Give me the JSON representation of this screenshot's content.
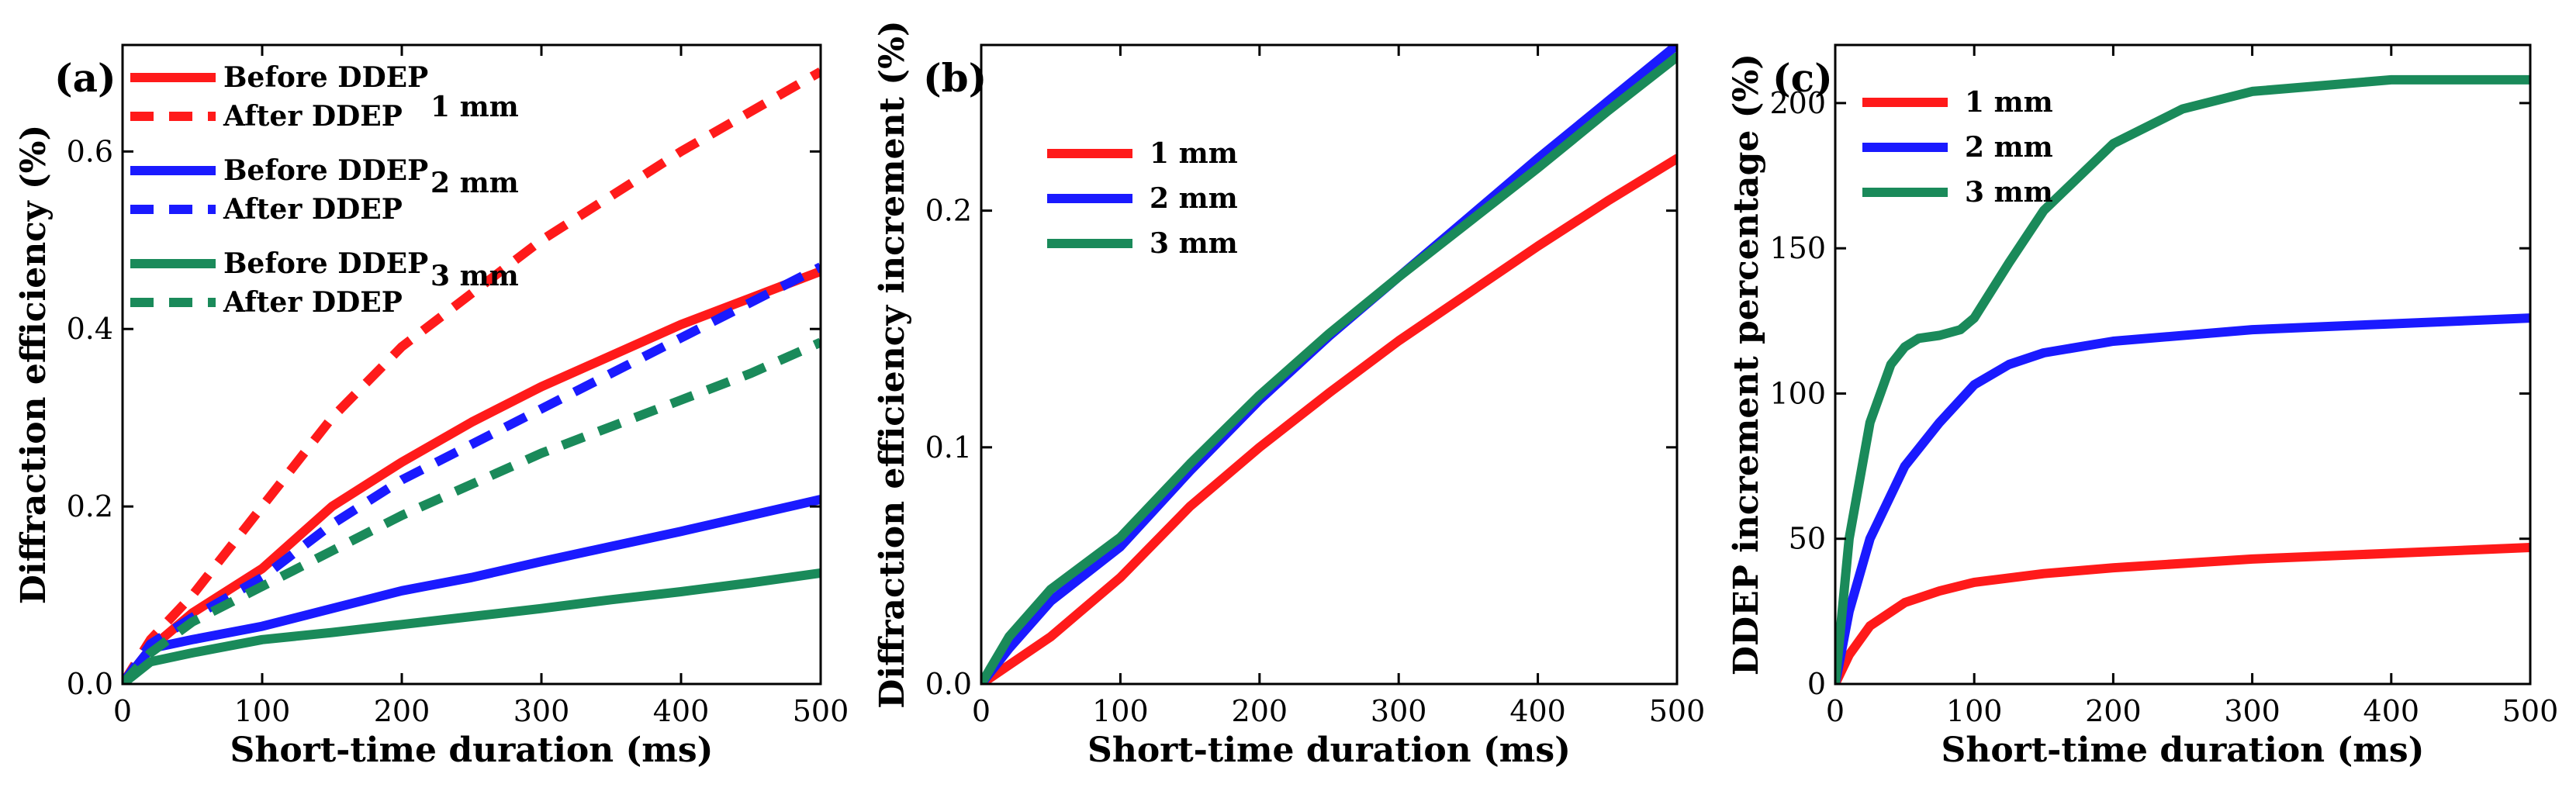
{
  "chart_data": [
    {
      "type": "line",
      "panel_label": "(a)",
      "xlabel": "Short-time duration (ms)",
      "ylabel": "Diffraction efficiency (%)",
      "xlim": [
        0,
        500
      ],
      "ylim": [
        0,
        0.72
      ],
      "xticks": [
        0,
        100,
        200,
        300,
        400,
        500
      ],
      "yticks": [
        0.0,
        0.2,
        0.4,
        0.6
      ],
      "ytick_labels": [
        "0.0",
        "0.2",
        "0.4",
        "0.6"
      ],
      "legend_position": "top-left",
      "legend_groups": [
        "1 mm",
        "2 mm",
        "3 mm"
      ],
      "series": [
        {
          "name": "Before DDEP",
          "group": "1 mm",
          "color": "#ff1a1a",
          "dash": "solid",
          "x": [
            0,
            20,
            50,
            100,
            150,
            200,
            250,
            300,
            350,
            400,
            450,
            500
          ],
          "y": [
            0,
            0.04,
            0.08,
            0.13,
            0.2,
            0.25,
            0.295,
            0.335,
            0.37,
            0.405,
            0.435,
            0.465
          ]
        },
        {
          "name": "After DDEP",
          "group": "1 mm",
          "color": "#ff1a1a",
          "dash": "dashed",
          "x": [
            0,
            20,
            50,
            100,
            150,
            200,
            250,
            300,
            350,
            400,
            450,
            500
          ],
          "y": [
            0,
            0.05,
            0.1,
            0.2,
            0.3,
            0.38,
            0.44,
            0.5,
            0.55,
            0.6,
            0.645,
            0.69
          ]
        },
        {
          "name": "Before DDEP",
          "group": "2 mm",
          "color": "#1a1aff",
          "dash": "solid",
          "x": [
            0,
            20,
            50,
            100,
            150,
            200,
            250,
            300,
            350,
            400,
            450,
            500
          ],
          "y": [
            0,
            0.04,
            0.05,
            0.065,
            0.085,
            0.105,
            0.12,
            0.138,
            0.155,
            0.172,
            0.19,
            0.208
          ]
        },
        {
          "name": "After DDEP",
          "group": "2 mm",
          "color": "#1a1aff",
          "dash": "dashed",
          "x": [
            0,
            20,
            50,
            100,
            150,
            200,
            250,
            300,
            350,
            400,
            450,
            500
          ],
          "y": [
            0,
            0.045,
            0.075,
            0.12,
            0.18,
            0.23,
            0.27,
            0.31,
            0.35,
            0.39,
            0.43,
            0.47
          ]
        },
        {
          "name": "Before DDEP",
          "group": "3 mm",
          "color": "#1a8a5a",
          "dash": "solid",
          "x": [
            0,
            20,
            50,
            100,
            150,
            200,
            250,
            300,
            350,
            400,
            450,
            500
          ],
          "y": [
            0,
            0.025,
            0.035,
            0.05,
            0.058,
            0.067,
            0.076,
            0.085,
            0.095,
            0.104,
            0.114,
            0.125
          ]
        },
        {
          "name": "After DDEP",
          "group": "3 mm",
          "color": "#1a8a5a",
          "dash": "dashed",
          "x": [
            0,
            20,
            50,
            100,
            150,
            200,
            250,
            300,
            350,
            400,
            450,
            500
          ],
          "y": [
            0,
            0.035,
            0.07,
            0.11,
            0.15,
            0.19,
            0.225,
            0.26,
            0.29,
            0.32,
            0.35,
            0.385
          ]
        }
      ]
    },
    {
      "type": "line",
      "panel_label": "(b)",
      "xlabel": "Short-time duration (ms)",
      "ylabel": "Diffraction efficiency increment (%)",
      "xlim": [
        0,
        500
      ],
      "ylim": [
        0,
        0.27
      ],
      "xticks": [
        0,
        100,
        200,
        300,
        400,
        500
      ],
      "yticks": [
        0.0,
        0.1,
        0.2
      ],
      "ytick_labels": [
        "0.0",
        "0.1",
        "0.2"
      ],
      "legend_position": "top-left",
      "series": [
        {
          "name": "1 mm",
          "color": "#ff1a1a",
          "dash": "solid",
          "x": [
            0,
            20,
            50,
            100,
            150,
            200,
            250,
            300,
            350,
            400,
            450,
            500
          ],
          "y": [
            0,
            0.008,
            0.02,
            0.045,
            0.075,
            0.1,
            0.123,
            0.145,
            0.165,
            0.185,
            0.204,
            0.222
          ]
        },
        {
          "name": "2 mm",
          "color": "#1a1aff",
          "dash": "solid",
          "x": [
            0,
            20,
            50,
            100,
            150,
            200,
            250,
            300,
            350,
            400,
            450,
            500
          ],
          "y": [
            0,
            0.015,
            0.035,
            0.058,
            0.09,
            0.12,
            0.147,
            0.172,
            0.197,
            0.222,
            0.246,
            0.27
          ]
        },
        {
          "name": "3 mm",
          "color": "#1a8a5a",
          "dash": "solid",
          "x": [
            0,
            20,
            50,
            100,
            150,
            200,
            250,
            300,
            350,
            400,
            450,
            500
          ],
          "y": [
            0,
            0.02,
            0.04,
            0.062,
            0.093,
            0.122,
            0.148,
            0.172,
            0.195,
            0.218,
            0.242,
            0.265
          ]
        }
      ]
    },
    {
      "type": "line",
      "panel_label": "(c)",
      "xlabel": "Short-time duration (ms)",
      "ylabel": "DDEP increment percentage (%)",
      "xlim": [
        0,
        500
      ],
      "ylim": [
        0,
        220
      ],
      "xticks": [
        0,
        100,
        200,
        300,
        400,
        500
      ],
      "yticks": [
        0,
        50,
        100,
        150,
        200
      ],
      "ytick_labels": [
        "0",
        "50",
        "100",
        "150",
        "200"
      ],
      "legend_position": "top-left",
      "series": [
        {
          "name": "1 mm",
          "color": "#ff1a1a",
          "dash": "solid",
          "x": [
            0,
            10,
            25,
            50,
            75,
            100,
            150,
            200,
            300,
            400,
            500
          ],
          "y": [
            0,
            10,
            20,
            28,
            32,
            35,
            38,
            40,
            43,
            45,
            47
          ]
        },
        {
          "name": "2 mm",
          "color": "#1a1aff",
          "dash": "solid",
          "x": [
            0,
            10,
            25,
            50,
            75,
            100,
            125,
            150,
            200,
            300,
            400,
            500
          ],
          "y": [
            0,
            25,
            50,
            75,
            90,
            103,
            110,
            114,
            118,
            122,
            124,
            126
          ]
        },
        {
          "name": "3 mm",
          "color": "#1a8a5a",
          "dash": "solid",
          "x": [
            0,
            10,
            25,
            40,
            50,
            60,
            75,
            90,
            100,
            125,
            150,
            200,
            250,
            300,
            400,
            500
          ],
          "y": [
            0,
            50,
            90,
            110,
            116,
            119,
            120,
            122,
            126,
            145,
            163,
            186,
            198,
            204,
            208,
            208
          ]
        }
      ]
    }
  ]
}
